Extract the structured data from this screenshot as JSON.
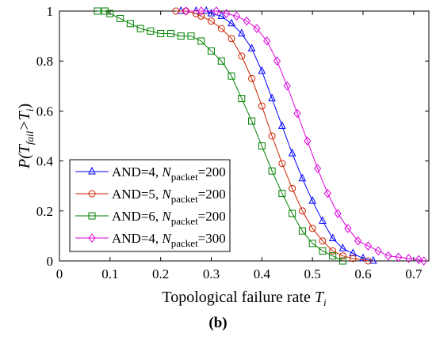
{
  "chart_data": {
    "type": "line",
    "title": "",
    "xlabel": "Topological failure rate",
    "xlabel_symbol": "T",
    "xlabel_sub": "i",
    "ylabel_prefix": "P(T",
    "ylabel_sub1": "fail",
    "ylabel_mid": ">T",
    "ylabel_sub2": "i",
    "ylabel_suffix": ")",
    "xlim": [
      0,
      0.73
    ],
    "ylim": [
      0,
      1
    ],
    "xticks": [
      "0",
      "0.1",
      "0.2",
      "0.3",
      "0.4",
      "0.5",
      "0.6",
      "0.7"
    ],
    "yticks": [
      "0",
      "0.2",
      "0.4",
      "0.6",
      "0.8",
      "1"
    ],
    "grid": false,
    "legend_position": "bottom-left",
    "caption": "(b)",
    "series": [
      {
        "name_prefix": "AND=4, ",
        "name_sym": "N",
        "name_sub": "packet",
        "name_suffix": "=200",
        "color": "#0000ff",
        "marker": "triangle",
        "x": [
          0.24,
          0.27,
          0.29,
          0.3,
          0.32,
          0.34,
          0.36,
          0.38,
          0.4,
          0.42,
          0.44,
          0.46,
          0.48,
          0.5,
          0.52,
          0.54,
          0.56,
          0.58,
          0.6,
          0.62
        ],
        "y": [
          1.0,
          1.0,
          1.0,
          0.99,
          0.98,
          0.95,
          0.91,
          0.85,
          0.76,
          0.65,
          0.54,
          0.43,
          0.33,
          0.24,
          0.16,
          0.09,
          0.05,
          0.03,
          0.01,
          0.0
        ]
      },
      {
        "name_prefix": "AND=5, ",
        "name_sym": "N",
        "name_sub": "packet",
        "name_suffix": "=200",
        "color": "#cc2200",
        "marker": "circle",
        "x": [
          0.23,
          0.25,
          0.27,
          0.28,
          0.3,
          0.32,
          0.34,
          0.36,
          0.38,
          0.4,
          0.42,
          0.44,
          0.46,
          0.48,
          0.5,
          0.52,
          0.54,
          0.56,
          0.58,
          0.61
        ],
        "y": [
          1.0,
          1.0,
          0.99,
          0.98,
          0.96,
          0.93,
          0.89,
          0.82,
          0.73,
          0.62,
          0.5,
          0.39,
          0.29,
          0.2,
          0.13,
          0.08,
          0.04,
          0.02,
          0.01,
          0.0
        ]
      },
      {
        "name_prefix": "AND=6, ",
        "name_sym": "N",
        "name_sub": "packet",
        "name_suffix": "=200",
        "color": "#008000",
        "marker": "square",
        "x": [
          0.075,
          0.09,
          0.1,
          0.12,
          0.14,
          0.16,
          0.18,
          0.2,
          0.22,
          0.24,
          0.26,
          0.28,
          0.3,
          0.32,
          0.34,
          0.36,
          0.38,
          0.4,
          0.42,
          0.44,
          0.46,
          0.48,
          0.5,
          0.52,
          0.54,
          0.56
        ],
        "y": [
          1.0,
          1.0,
          0.99,
          0.97,
          0.95,
          0.93,
          0.92,
          0.91,
          0.91,
          0.9,
          0.9,
          0.88,
          0.84,
          0.8,
          0.74,
          0.65,
          0.56,
          0.46,
          0.36,
          0.27,
          0.19,
          0.12,
          0.07,
          0.04,
          0.02,
          0.0
        ]
      },
      {
        "name_prefix": "AND=4, ",
        "name_sym": "N",
        "name_sub": "packet",
        "name_suffix": "=300",
        "color": "#dd00dd",
        "marker": "diamond",
        "x": [
          0.25,
          0.28,
          0.31,
          0.33,
          0.35,
          0.37,
          0.39,
          0.41,
          0.43,
          0.45,
          0.47,
          0.49,
          0.51,
          0.53,
          0.55,
          0.57,
          0.59,
          0.61,
          0.63,
          0.65,
          0.67,
          0.69,
          0.71,
          0.72
        ],
        "y": [
          1.0,
          1.0,
          1.0,
          0.99,
          0.98,
          0.96,
          0.93,
          0.88,
          0.8,
          0.7,
          0.59,
          0.48,
          0.37,
          0.27,
          0.19,
          0.13,
          0.08,
          0.06,
          0.04,
          0.02,
          0.015,
          0.01,
          0.005,
          0.0
        ]
      }
    ]
  }
}
